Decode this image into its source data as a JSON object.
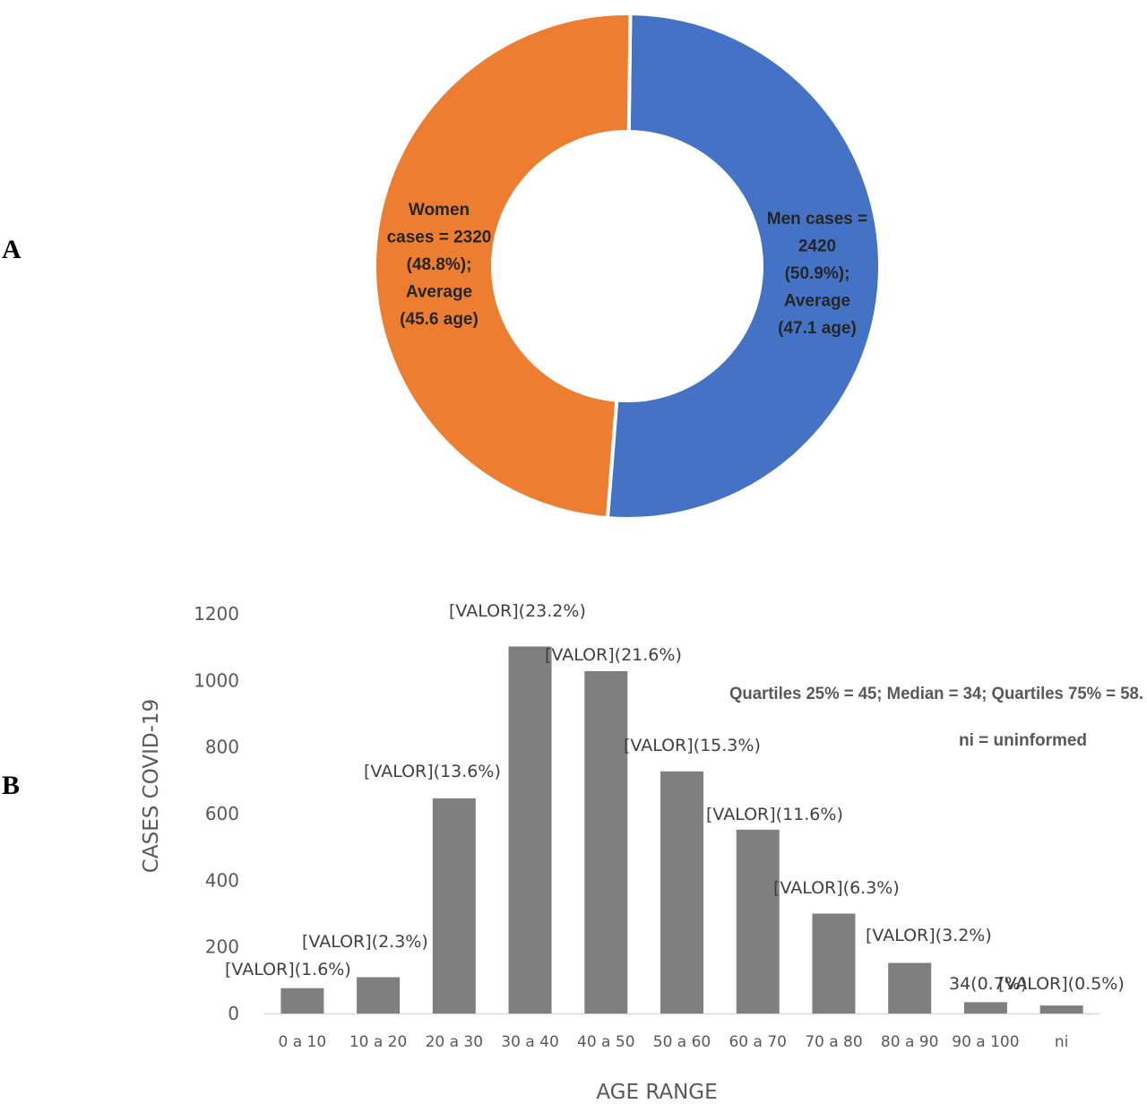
{
  "panels": {
    "a": "A",
    "b": "B"
  },
  "chart_data": [
    {
      "type": "pie",
      "variant": "donut",
      "slices": [
        {
          "label": "Men",
          "value": 2420,
          "percent": 50.9,
          "color": "#4472C4",
          "text_lines": [
            "Men cases =",
            "2420",
            "(50.9%);",
            "Average",
            "(47.1 age)"
          ]
        },
        {
          "label": "Women",
          "value": 2320,
          "percent": 48.8,
          "color": "#ED7D31",
          "text_lines": [
            "Women",
            "cases = 2320",
            "(48.8%);",
            "Average",
            "(45.6 age)"
          ]
        }
      ]
    },
    {
      "type": "bar",
      "categories": [
        "0 a 10",
        "10 a 20",
        "20 a 30",
        "30 a 40",
        "40 a 50",
        "50 a 60",
        "60 a 70",
        "70 a 80",
        "80 a 90",
        "90 a 100",
        "ni"
      ],
      "values": [
        76,
        109,
        646,
        1102,
        1028,
        727,
        552,
        300,
        152,
        34,
        24
      ],
      "data_labels": [
        "[VALOR](1.6%)",
        "[VALOR](2.3%)",
        "[VALOR](13.6%)",
        "[VALOR](23.2%)",
        "[VALOR](21.6%)",
        "[VALOR](15.3%)",
        "[VALOR](11.6%)",
        "[VALOR](6.3%)",
        "[VALOR](3.2%)",
        "34(0.7%)",
        "[VALOR](0.5%)"
      ],
      "xlabel": "AGE RANGE",
      "ylabel": "CASES COVID-19",
      "ylim": [
        0,
        1200
      ],
      "yticks": [
        "0",
        "200",
        "400",
        "600",
        "800",
        "1000",
        "1200"
      ],
      "bar_color": "#7F7F7F",
      "annotations": [
        "Quartiles 25% = 45; Median = 34; Quartiles 75% =  58.",
        "ni = uninformed"
      ]
    }
  ]
}
